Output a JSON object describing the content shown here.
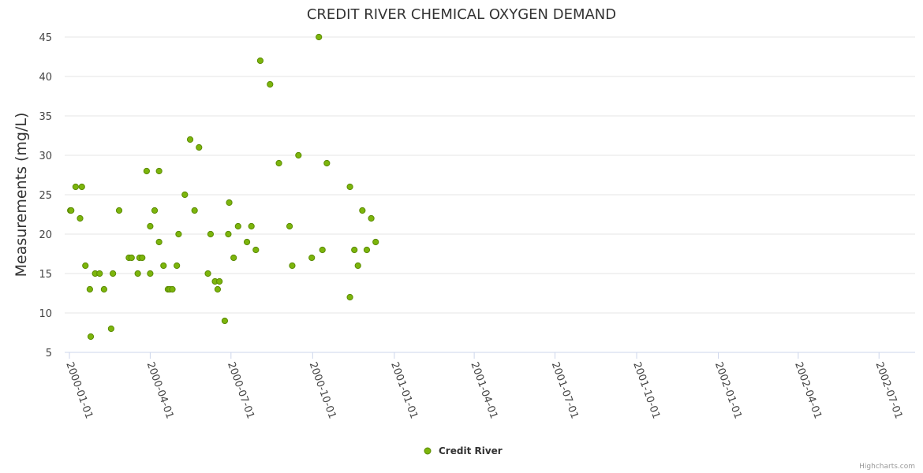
{
  "chart_data": {
    "type": "scatter",
    "title": "CREDIT RIVER CHEMICAL OXYGEN DEMAND",
    "xlabel": "",
    "ylabel": "Measurements (mg/L)",
    "ylim": [
      5,
      45
    ],
    "yticks": [
      5,
      10,
      15,
      20,
      25,
      30,
      35,
      40,
      45
    ],
    "xlim": [
      "2000-01-01",
      "2002-07-31"
    ],
    "xticks": [
      "2000-01-01",
      "2000-04-01",
      "2000-07-01",
      "2000-10-01",
      "2001-01-01",
      "2001-04-01",
      "2001-07-01",
      "2001-10-01",
      "2002-01-01",
      "2002-04-01",
      "2002-07-01"
    ],
    "grid": true,
    "legend_position": "bottom-center",
    "marker_color": "#7cb50c",
    "marker_stroke": "#5a8a00",
    "series": [
      {
        "name": "Credit River",
        "points": [
          [
            "2000-01-02",
            23
          ],
          [
            "2000-01-03",
            23
          ],
          [
            "2000-01-08",
            26
          ],
          [
            "2000-01-13",
            22
          ],
          [
            "2000-01-15",
            26
          ],
          [
            "2000-01-19",
            16
          ],
          [
            "2000-01-24",
            13
          ],
          [
            "2000-01-25",
            7
          ],
          [
            "2000-01-30",
            15
          ],
          [
            "2000-02-04",
            15
          ],
          [
            "2000-02-09",
            13
          ],
          [
            "2000-02-17",
            8
          ],
          [
            "2000-02-19",
            15
          ],
          [
            "2000-02-26",
            23
          ],
          [
            "2000-03-08",
            17
          ],
          [
            "2000-03-11",
            17
          ],
          [
            "2000-03-18",
            15
          ],
          [
            "2000-03-20",
            17
          ],
          [
            "2000-03-23",
            17
          ],
          [
            "2000-03-28",
            28
          ],
          [
            "2000-04-01",
            21
          ],
          [
            "2000-04-01",
            15
          ],
          [
            "2000-04-06",
            23
          ],
          [
            "2000-04-11",
            28
          ],
          [
            "2000-04-11",
            19
          ],
          [
            "2000-04-16",
            16
          ],
          [
            "2000-04-21",
            13
          ],
          [
            "2000-04-23",
            13
          ],
          [
            "2000-04-26",
            13
          ],
          [
            "2000-05-01",
            16
          ],
          [
            "2000-05-03",
            20
          ],
          [
            "2000-05-10",
            25
          ],
          [
            "2000-05-16",
            32
          ],
          [
            "2000-05-21",
            23
          ],
          [
            "2000-05-26",
            31
          ],
          [
            "2000-06-05",
            15
          ],
          [
            "2000-06-08",
            20
          ],
          [
            "2000-06-13",
            14
          ],
          [
            "2000-06-16",
            13
          ],
          [
            "2000-06-18",
            14
          ],
          [
            "2000-06-24",
            9
          ],
          [
            "2000-06-28",
            20
          ],
          [
            "2000-06-29",
            24
          ],
          [
            "2000-07-04",
            17
          ],
          [
            "2000-07-09",
            21
          ],
          [
            "2000-07-19",
            19
          ],
          [
            "2000-07-24",
            21
          ],
          [
            "2000-07-29",
            18
          ],
          [
            "2000-08-03",
            42
          ],
          [
            "2000-08-14",
            39
          ],
          [
            "2000-08-24",
            29
          ],
          [
            "2000-09-05",
            21
          ],
          [
            "2000-09-08",
            16
          ],
          [
            "2000-09-15",
            30
          ],
          [
            "2000-09-30",
            17
          ],
          [
            "2000-10-08",
            45
          ],
          [
            "2000-10-12",
            18
          ],
          [
            "2000-10-17",
            29
          ],
          [
            "2000-11-12",
            26
          ],
          [
            "2000-11-12",
            12
          ],
          [
            "2000-11-17",
            18
          ],
          [
            "2000-11-21",
            16
          ],
          [
            "2000-11-26",
            23
          ],
          [
            "2000-12-01",
            18
          ],
          [
            "2000-12-06",
            22
          ],
          [
            "2000-12-11",
            19
          ]
        ]
      }
    ],
    "credits": "Highcharts.com"
  }
}
